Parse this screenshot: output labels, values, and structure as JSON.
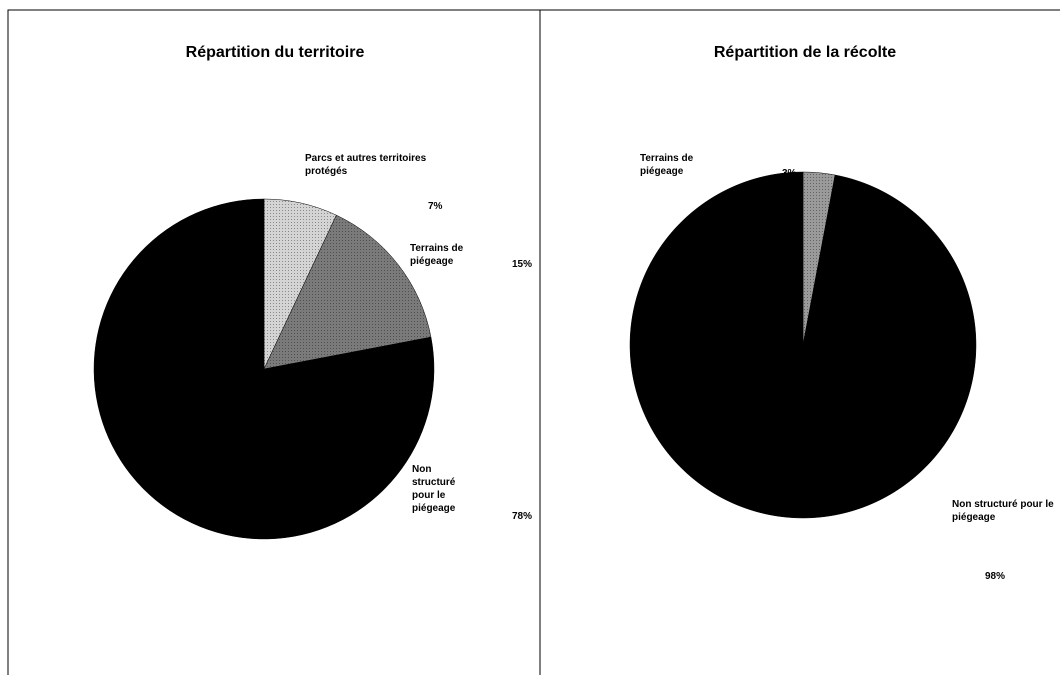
{
  "chart_data": [
    {
      "type": "pie",
      "title": "Répartition du territoire",
      "categories": [
        "Parcs et autres territoires protégés",
        "Terrains de piégeage",
        "Non structuré pour le piégeage"
      ],
      "values": [
        7,
        15,
        78
      ],
      "value_labels": [
        "7%",
        "15%",
        "78%"
      ],
      "colors": [
        "#d4d4d4",
        "#7a7a7a",
        "#000000"
      ]
    },
    {
      "type": "pie",
      "title": "Répartition de la récolte",
      "categories": [
        "Terrains de piégeage",
        "Non structuré pour le piégeage"
      ],
      "values": [
        3,
        98
      ],
      "value_labels": [
        "3%",
        "98%"
      ],
      "colors": [
        "#9a9a9a",
        "#000000"
      ]
    }
  ]
}
